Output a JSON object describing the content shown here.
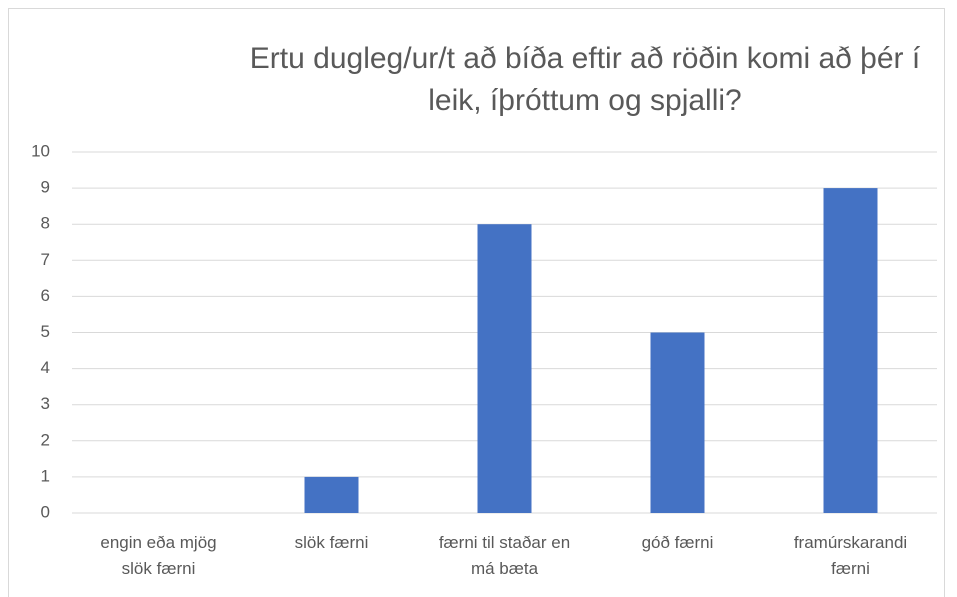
{
  "chart_data": {
    "type": "bar",
    "title": "Ertu dugleg/ur/t að bíða eftir að röðin komi að þér í leik, íþróttum og spjalli?",
    "categories": [
      "engin eða mjög slök færni",
      "slök færni",
      "færni til staðar en má bæta",
      "góð færni",
      "framúrskarandi færni"
    ],
    "values": [
      0,
      1,
      8,
      5,
      9
    ],
    "color": "#4472c4",
    "ylim": [
      0,
      10
    ],
    "yticks": [
      0,
      1,
      2,
      3,
      4,
      5,
      6,
      7,
      8,
      9,
      10
    ],
    "grid": true
  }
}
